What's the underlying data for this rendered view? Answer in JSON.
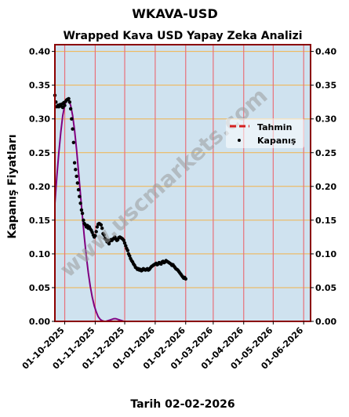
{
  "page_title": "WKAVA-USD",
  "chart_data": {
    "type": "line",
    "title": "Wrapped Kava USD Yapay Zeka Analizi",
    "ylabel": "Kapanış Fiyatları",
    "xlabel": "Tarih 02-02-2026",
    "ylim": [
      0,
      0.41
    ],
    "x_range": [
      "2025-09-21",
      "2026-06-08"
    ],
    "y_ticks": [
      "0.00",
      "0.05",
      "0.10",
      "0.15",
      "0.20",
      "0.25",
      "0.30",
      "0.35",
      "0.40"
    ],
    "x_ticks": [
      {
        "date": "2025-10-01",
        "label": "01-10-2025"
      },
      {
        "date": "2025-11-01",
        "label": "01-11-2025"
      },
      {
        "date": "2025-12-01",
        "label": "01-12-2025"
      },
      {
        "date": "2026-01-01",
        "label": "01-01-2026"
      },
      {
        "date": "2026-02-01",
        "label": "01-02-2026"
      },
      {
        "date": "2026-03-01",
        "label": "01-03-2026"
      },
      {
        "date": "2026-04-01",
        "label": "01-04-2026"
      },
      {
        "date": "2026-05-01",
        "label": "01-05-2026"
      },
      {
        "date": "2026-06-01",
        "label": "01-06-2026"
      }
    ],
    "grid": true,
    "legend_position": "right",
    "watermark": "www.uscmarkets.com",
    "colors": {
      "background": "#cfe2ef",
      "hgrid": "#f2b34a",
      "vgrid": "#e8707a",
      "border": "#8b0000",
      "prediction": "#d42020",
      "closing": "#000000",
      "forecast_curve": "#800080"
    },
    "series": [
      {
        "name": "Tahmin",
        "style": "dashed-line",
        "points": []
      },
      {
        "name": "Kapanış",
        "style": "markers",
        "points": [
          [
            "2025-09-21",
            0.335
          ],
          [
            "2025-09-22",
            0.325
          ],
          [
            "2025-09-23",
            0.318
          ],
          [
            "2025-09-24",
            0.32
          ],
          [
            "2025-09-25",
            0.318
          ],
          [
            "2025-09-26",
            0.321
          ],
          [
            "2025-09-27",
            0.319
          ],
          [
            "2025-09-28",
            0.322
          ],
          [
            "2025-09-29",
            0.317
          ],
          [
            "2025-09-30",
            0.324
          ],
          [
            "2025-10-01",
            0.32
          ],
          [
            "2025-10-02",
            0.326
          ],
          [
            "2025-10-03",
            0.328
          ],
          [
            "2025-10-04",
            0.329
          ],
          [
            "2025-10-05",
            0.33
          ],
          [
            "2025-10-06",
            0.325
          ],
          [
            "2025-10-07",
            0.315
          ],
          [
            "2025-10-08",
            0.3
          ],
          [
            "2025-10-09",
            0.285
          ],
          [
            "2025-10-10",
            0.265
          ],
          [
            "2025-10-11",
            0.235
          ],
          [
            "2025-10-12",
            0.225
          ],
          [
            "2025-10-13",
            0.215
          ],
          [
            "2025-10-14",
            0.205
          ],
          [
            "2025-10-15",
            0.195
          ],
          [
            "2025-10-16",
            0.185
          ],
          [
            "2025-10-17",
            0.175
          ],
          [
            "2025-10-18",
            0.165
          ],
          [
            "2025-10-19",
            0.16
          ],
          [
            "2025-10-20",
            0.15
          ],
          [
            "2025-10-21",
            0.145
          ],
          [
            "2025-10-22",
            0.143
          ],
          [
            "2025-10-23",
            0.14
          ],
          [
            "2025-10-24",
            0.142
          ],
          [
            "2025-10-25",
            0.138
          ],
          [
            "2025-10-26",
            0.14
          ],
          [
            "2025-10-27",
            0.137
          ],
          [
            "2025-10-28",
            0.135
          ],
          [
            "2025-10-29",
            0.132
          ],
          [
            "2025-10-30",
            0.128
          ],
          [
            "2025-10-31",
            0.125
          ],
          [
            "2025-11-01",
            0.127
          ],
          [
            "2025-11-02",
            0.133
          ],
          [
            "2025-11-03",
            0.14
          ],
          [
            "2025-11-04",
            0.144
          ],
          [
            "2025-11-05",
            0.145
          ],
          [
            "2025-11-06",
            0.144
          ],
          [
            "2025-11-07",
            0.143
          ],
          [
            "2025-11-08",
            0.138
          ],
          [
            "2025-11-09",
            0.13
          ],
          [
            "2025-11-10",
            0.128
          ],
          [
            "2025-11-11",
            0.123
          ],
          [
            "2025-11-12",
            0.121
          ],
          [
            "2025-11-13",
            0.118
          ],
          [
            "2025-11-14",
            0.12
          ],
          [
            "2025-11-15",
            0.115
          ],
          [
            "2025-11-16",
            0.119
          ],
          [
            "2025-11-17",
            0.121
          ],
          [
            "2025-11-18",
            0.12
          ],
          [
            "2025-11-19",
            0.122
          ],
          [
            "2025-11-20",
            0.123
          ],
          [
            "2025-11-21",
            0.125
          ],
          [
            "2025-11-22",
            0.122
          ],
          [
            "2025-11-23",
            0.12
          ],
          [
            "2025-11-24",
            0.121
          ],
          [
            "2025-11-25",
            0.124
          ],
          [
            "2025-11-26",
            0.125
          ],
          [
            "2025-11-27",
            0.124
          ],
          [
            "2025-11-28",
            0.123
          ],
          [
            "2025-11-29",
            0.122
          ],
          [
            "2025-11-30",
            0.12
          ],
          [
            "2025-12-01",
            0.116
          ],
          [
            "2025-12-02",
            0.112
          ],
          [
            "2025-12-03",
            0.108
          ],
          [
            "2025-12-04",
            0.105
          ],
          [
            "2025-12-05",
            0.1
          ],
          [
            "2025-12-06",
            0.097
          ],
          [
            "2025-12-07",
            0.093
          ],
          [
            "2025-12-08",
            0.09
          ],
          [
            "2025-12-09",
            0.088
          ],
          [
            "2025-12-10",
            0.085
          ],
          [
            "2025-12-11",
            0.083
          ],
          [
            "2025-12-12",
            0.08
          ],
          [
            "2025-12-13",
            0.079
          ],
          [
            "2025-12-14",
            0.077
          ],
          [
            "2025-12-15",
            0.078
          ],
          [
            "2025-12-16",
            0.076
          ],
          [
            "2025-12-17",
            0.077
          ],
          [
            "2025-12-18",
            0.075
          ],
          [
            "2025-12-19",
            0.076
          ],
          [
            "2025-12-20",
            0.078
          ],
          [
            "2025-12-21",
            0.077
          ],
          [
            "2025-12-22",
            0.076
          ],
          [
            "2025-12-23",
            0.077
          ],
          [
            "2025-12-24",
            0.078
          ],
          [
            "2025-12-25",
            0.076
          ],
          [
            "2025-12-26",
            0.077
          ],
          [
            "2025-12-27",
            0.079
          ],
          [
            "2025-12-28",
            0.081
          ],
          [
            "2025-12-29",
            0.082
          ],
          [
            "2025-12-30",
            0.083
          ],
          [
            "2025-12-31",
            0.084
          ],
          [
            "2026-01-01",
            0.085
          ],
          [
            "2026-01-02",
            0.086
          ],
          [
            "2026-01-03",
            0.084
          ],
          [
            "2026-01-04",
            0.085
          ],
          [
            "2026-01-05",
            0.087
          ],
          [
            "2026-01-06",
            0.086
          ],
          [
            "2026-01-07",
            0.085
          ],
          [
            "2026-01-08",
            0.088
          ],
          [
            "2026-01-09",
            0.089
          ],
          [
            "2026-01-10",
            0.087
          ],
          [
            "2026-01-11",
            0.088
          ],
          [
            "2026-01-12",
            0.09
          ],
          [
            "2026-01-13",
            0.089
          ],
          [
            "2026-01-14",
            0.088
          ],
          [
            "2026-01-15",
            0.087
          ],
          [
            "2026-01-16",
            0.086
          ],
          [
            "2026-01-17",
            0.085
          ],
          [
            "2026-01-18",
            0.083
          ],
          [
            "2026-01-19",
            0.084
          ],
          [
            "2026-01-20",
            0.082
          ],
          [
            "2026-01-21",
            0.08
          ],
          [
            "2026-01-22",
            0.078
          ],
          [
            "2026-01-23",
            0.077
          ],
          [
            "2026-01-24",
            0.076
          ],
          [
            "2026-01-25",
            0.074
          ],
          [
            "2026-01-26",
            0.072
          ],
          [
            "2026-01-27",
            0.07
          ],
          [
            "2026-01-28",
            0.068
          ],
          [
            "2026-01-29",
            0.066
          ],
          [
            "2026-01-30",
            0.064
          ],
          [
            "2026-01-31",
            0.065
          ],
          [
            "2026-02-01",
            0.063
          ]
        ]
      },
      {
        "style": "curve",
        "points": [
          [
            "2025-09-21",
            0.175
          ],
          [
            "2025-09-23",
            0.215
          ],
          [
            "2025-09-25",
            0.25
          ],
          [
            "2025-09-27",
            0.28
          ],
          [
            "2025-09-29",
            0.305
          ],
          [
            "2025-10-01",
            0.32
          ],
          [
            "2025-10-03",
            0.328
          ],
          [
            "2025-10-05",
            0.328
          ],
          [
            "2025-10-07",
            0.32
          ],
          [
            "2025-10-09",
            0.305
          ],
          [
            "2025-10-11",
            0.283
          ],
          [
            "2025-10-13",
            0.255
          ],
          [
            "2025-10-15",
            0.222
          ],
          [
            "2025-10-17",
            0.188
          ],
          [
            "2025-10-19",
            0.155
          ],
          [
            "2025-10-21",
            0.124
          ],
          [
            "2025-10-23",
            0.096
          ],
          [
            "2025-10-25",
            0.072
          ],
          [
            "2025-10-27",
            0.052
          ],
          [
            "2025-10-29",
            0.036
          ],
          [
            "2025-10-31",
            0.023
          ],
          [
            "2025-11-02",
            0.014
          ],
          [
            "2025-11-04",
            0.007
          ],
          [
            "2025-11-06",
            0.003
          ],
          [
            "2025-11-08",
            0.001
          ],
          [
            "2025-11-10",
            0.0
          ],
          [
            "2025-11-12",
            0.0
          ],
          [
            "2025-11-14",
            0.001
          ],
          [
            "2025-11-16",
            0.002
          ],
          [
            "2025-11-18",
            0.003
          ],
          [
            "2025-11-20",
            0.004
          ],
          [
            "2025-11-22",
            0.004
          ],
          [
            "2025-11-24",
            0.003
          ],
          [
            "2025-11-26",
            0.002
          ],
          [
            "2025-11-28",
            0.001
          ],
          [
            "2025-11-30",
            0.0
          ]
        ]
      }
    ]
  }
}
